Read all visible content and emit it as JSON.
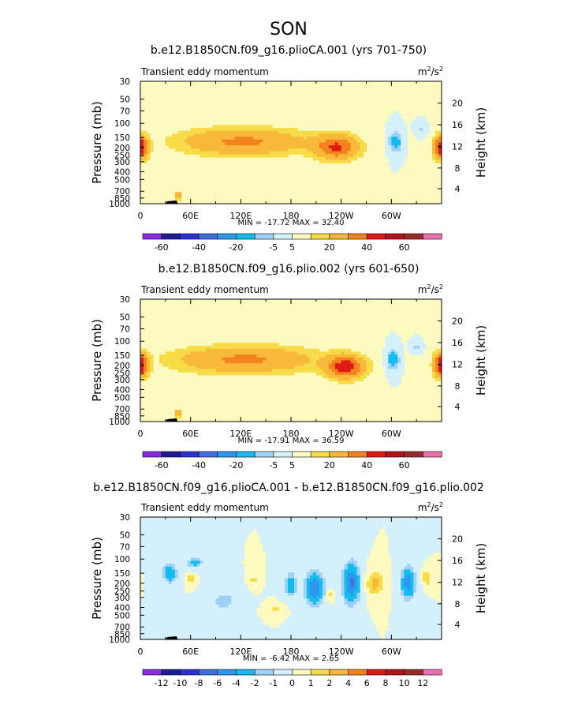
{
  "figure_title": "SON",
  "colors": {
    "palette": [
      "#8b2be2",
      "#1e1a9a",
      "#2b32d3",
      "#3f6fe0",
      "#2e97f0",
      "#14bbee",
      "#9fd0f5",
      "#d4f0fb",
      "#fdfac0",
      "#f7dc48",
      "#f8b93a",
      "#f3831e",
      "#e11a14",
      "#b4111c",
      "#9a2a28",
      "#ee6fae"
    ]
  },
  "panels": [
    {
      "title": "b.e12.B1850CN.f09_g16.plioCA.001 (yrs 701-750)",
      "left_label": "Transient eddy momentum",
      "units_base": "m",
      "units_sup1": "2",
      "units_mid": "/s",
      "units_sup2": "2",
      "stats": "MIN = -17.72   MAX =  32.40",
      "colorbar_labels": [
        "-60",
        "-40",
        "-20",
        "-5",
        "5",
        "20",
        "40",
        "60"
      ]
    },
    {
      "title": "b.e12.B1850CN.f09_g16.plio.002 (yrs 601-650)",
      "left_label": "Transient eddy momentum",
      "units_base": "m",
      "units_sup1": "2",
      "units_mid": "/s",
      "units_sup2": "2",
      "stats": "MIN = -17.91   MAX =  36.59",
      "colorbar_labels": [
        "-60",
        "-40",
        "-20",
        "-5",
        "5",
        "20",
        "40",
        "60"
      ]
    },
    {
      "title": "b.e12.B1850CN.f09_g16.plioCA.001 - b.e12.B1850CN.f09_g16.plio.002",
      "left_label": "Transient eddy momentum",
      "units_base": "m",
      "units_sup1": "2",
      "units_mid": "/s",
      "units_sup2": "2",
      "stats": "MIN =  -6.42   MAX =   2.65",
      "colorbar_labels": [
        "-12",
        "-10",
        "-8",
        "-6",
        "-4",
        "-2",
        "-1",
        "0",
        "1",
        "2",
        "4",
        "6",
        "8",
        "10",
        "12"
      ]
    }
  ],
  "chart_data": [
    {
      "type": "heatmap",
      "title": "b.e12.B1850CN.f09_g16.plioCA.001 (yrs 701-750)",
      "xlabel": "",
      "ylabel": "Pressure (mb)",
      "y2label": "Height (km)",
      "x_ticks": [
        "0",
        "60E",
        "120E",
        "180",
        "120W",
        "60W"
      ],
      "x_tick_lon": [
        0,
        60,
        120,
        180,
        240,
        300
      ],
      "xlim": [
        0,
        360
      ],
      "y_ticks": [
        "30",
        "50",
        "70",
        "100",
        "150",
        "200",
        "250",
        "300",
        "400",
        "500",
        "700",
        "850",
        "1000"
      ],
      "y_tick_values": [
        30,
        50,
        70,
        100,
        150,
        200,
        250,
        300,
        400,
        500,
        700,
        850,
        1000
      ],
      "ylim": [
        1000,
        30
      ],
      "y_scale": "log",
      "y2_ticks": [
        "20",
        "16",
        "12",
        "8",
        "4"
      ],
      "y2_tick_pressure": [
        56,
        104,
        195,
        360,
        650
      ],
      "levels": [
        -60,
        -50,
        -40,
        -30,
        -20,
        -10,
        -5,
        0,
        5,
        10,
        20,
        30,
        40,
        50,
        60
      ],
      "min": -17.72,
      "max": 32.4,
      "features": [
        {
          "lon": 123,
          "p": 170,
          "peak": 22,
          "lon_halfwidth": 78,
          "p_halfwidth_decades": 0.17
        },
        {
          "lon": 235,
          "p": 200,
          "peak": 30,
          "lon_halfwidth": 25,
          "p_halfwidth_decades": 0.15
        },
        {
          "lon": 2,
          "p": 200,
          "peak": 22,
          "lon_halfwidth": 8,
          "p_halfwidth_decades": 0.14
        },
        {
          "lon": 358,
          "p": 200,
          "peak": 22,
          "lon_halfwidth": 8,
          "p_halfwidth_decades": 0.14
        },
        {
          "lon": 305,
          "p": 170,
          "peak": -16,
          "lon_halfwidth": 7,
          "p_halfwidth_decades": 0.12
        },
        {
          "lon": 335,
          "p": 120,
          "peak": -6,
          "lon_halfwidth": 6,
          "p_halfwidth_decades": 0.07
        },
        {
          "lon": 45,
          "p": 800,
          "peak": 18,
          "lon_halfwidth": 4,
          "p_halfwidth_decades": 0.05
        }
      ]
    },
    {
      "type": "heatmap",
      "title": "b.e12.B1850CN.f09_g16.plio.002 (yrs 601-650)",
      "xlabel": "",
      "ylabel": "Pressure (mb)",
      "y2label": "Height (km)",
      "x_ticks": [
        "0",
        "60E",
        "120E",
        "180",
        "120W",
        "60W"
      ],
      "x_tick_lon": [
        0,
        60,
        120,
        180,
        240,
        300
      ],
      "xlim": [
        0,
        360
      ],
      "y_ticks": [
        "30",
        "50",
        "70",
        "100",
        "150",
        "200",
        "250",
        "300",
        "400",
        "500",
        "700",
        "850",
        "1000"
      ],
      "y_tick_values": [
        30,
        50,
        70,
        100,
        150,
        200,
        250,
        300,
        400,
        500,
        700,
        850,
        1000
      ],
      "ylim": [
        1000,
        30
      ],
      "y_scale": "log",
      "y2_ticks": [
        "20",
        "16",
        "12",
        "8",
        "4"
      ],
      "y2_tick_pressure": [
        56,
        104,
        195,
        360,
        650
      ],
      "levels": [
        -60,
        -50,
        -40,
        -30,
        -20,
        -10,
        -5,
        0,
        5,
        10,
        20,
        30,
        40,
        50,
        60
      ],
      "min": -17.91,
      "max": 36.59,
      "features": [
        {
          "lon": 125,
          "p": 170,
          "peak": 22,
          "lon_halfwidth": 85,
          "p_halfwidth_decades": 0.17
        },
        {
          "lon": 245,
          "p": 210,
          "peak": 36,
          "lon_halfwidth": 22,
          "p_halfwidth_decades": 0.14
        },
        {
          "lon": 2,
          "p": 200,
          "peak": 22,
          "lon_halfwidth": 8,
          "p_halfwidth_decades": 0.14
        },
        {
          "lon": 358,
          "p": 200,
          "peak": 22,
          "lon_halfwidth": 8,
          "p_halfwidth_decades": 0.14
        },
        {
          "lon": 302,
          "p": 170,
          "peak": -17,
          "lon_halfwidth": 7,
          "p_halfwidth_decades": 0.12
        },
        {
          "lon": 330,
          "p": 120,
          "peak": -6,
          "lon_halfwidth": 6,
          "p_halfwidth_decades": 0.07
        },
        {
          "lon": 45,
          "p": 800,
          "peak": 18,
          "lon_halfwidth": 4,
          "p_halfwidth_decades": 0.05
        }
      ]
    },
    {
      "type": "heatmap",
      "title": "b.e12.B1850CN.f09_g16.plioCA.001 - b.e12.B1850CN.f09_g16.plio.002",
      "xlabel": "",
      "ylabel": "Pressure (mb)",
      "y2label": "Height (km)",
      "x_ticks": [
        "0",
        "60E",
        "120E",
        "180",
        "120W",
        "60W"
      ],
      "x_tick_lon": [
        0,
        60,
        120,
        180,
        240,
        300
      ],
      "xlim": [
        0,
        360
      ],
      "y_ticks": [
        "30",
        "50",
        "70",
        "100",
        "150",
        "200",
        "250",
        "300",
        "400",
        "500",
        "700",
        "850",
        "1000"
      ],
      "y_tick_values": [
        30,
        50,
        70,
        100,
        150,
        200,
        250,
        300,
        400,
        500,
        700,
        850,
        1000
      ],
      "ylim": [
        1000,
        30
      ],
      "y_scale": "log",
      "y2_ticks": [
        "20",
        "16",
        "12",
        "8",
        "4"
      ],
      "y2_tick_pressure": [
        56,
        104,
        195,
        360,
        650
      ],
      "levels": [
        -12,
        -10,
        -8,
        -6,
        -4,
        -2,
        -1,
        0,
        1,
        2,
        4,
        6,
        8,
        10,
        12
      ],
      "min": -6.42,
      "max": 2.65,
      "features": [
        {
          "lon": 35,
          "p": 150,
          "peak": -4,
          "lon_halfwidth": 8,
          "p_halfwidth_decades": 0.1
        },
        {
          "lon": 65,
          "p": 110,
          "peak": -3,
          "lon_halfwidth": 8,
          "p_halfwidth_decades": 0.06
        },
        {
          "lon": 60,
          "p": 175,
          "peak": 1.6,
          "lon_halfwidth": 4,
          "p_halfwidth_decades": 0.06
        },
        {
          "lon": 135,
          "p": 180,
          "peak": 1.5,
          "lon_halfwidth": 4,
          "p_halfwidth_decades": 0.08
        },
        {
          "lon": 180,
          "p": 210,
          "peak": -3,
          "lon_halfwidth": 7,
          "p_halfwidth_decades": 0.14
        },
        {
          "lon": 208,
          "p": 230,
          "peak": -6,
          "lon_halfwidth": 10,
          "p_halfwidth_decades": 0.18
        },
        {
          "lon": 225,
          "p": 280,
          "peak": 1.5,
          "lon_halfwidth": 4,
          "p_halfwidth_decades": 0.07
        },
        {
          "lon": 252,
          "p": 200,
          "peak": -6.4,
          "lon_halfwidth": 9,
          "p_halfwidth_decades": 0.22
        },
        {
          "lon": 280,
          "p": 200,
          "peak": 2.5,
          "lon_halfwidth": 9,
          "p_halfwidth_decades": 0.14
        },
        {
          "lon": 320,
          "p": 200,
          "peak": -5,
          "lon_halfwidth": 8,
          "p_halfwidth_decades": 0.18
        },
        {
          "lon": 342,
          "p": 170,
          "peak": 2,
          "lon_halfwidth": 5,
          "p_halfwidth_decades": 0.08
        },
        {
          "lon": 162,
          "p": 420,
          "peak": 1.3,
          "lon_halfwidth": 8,
          "p_halfwidth_decades": 0.05
        },
        {
          "lon": 100,
          "p": 330,
          "peak": -1.5,
          "lon_halfwidth": 15,
          "p_halfwidth_decades": 0.12
        }
      ]
    }
  ]
}
